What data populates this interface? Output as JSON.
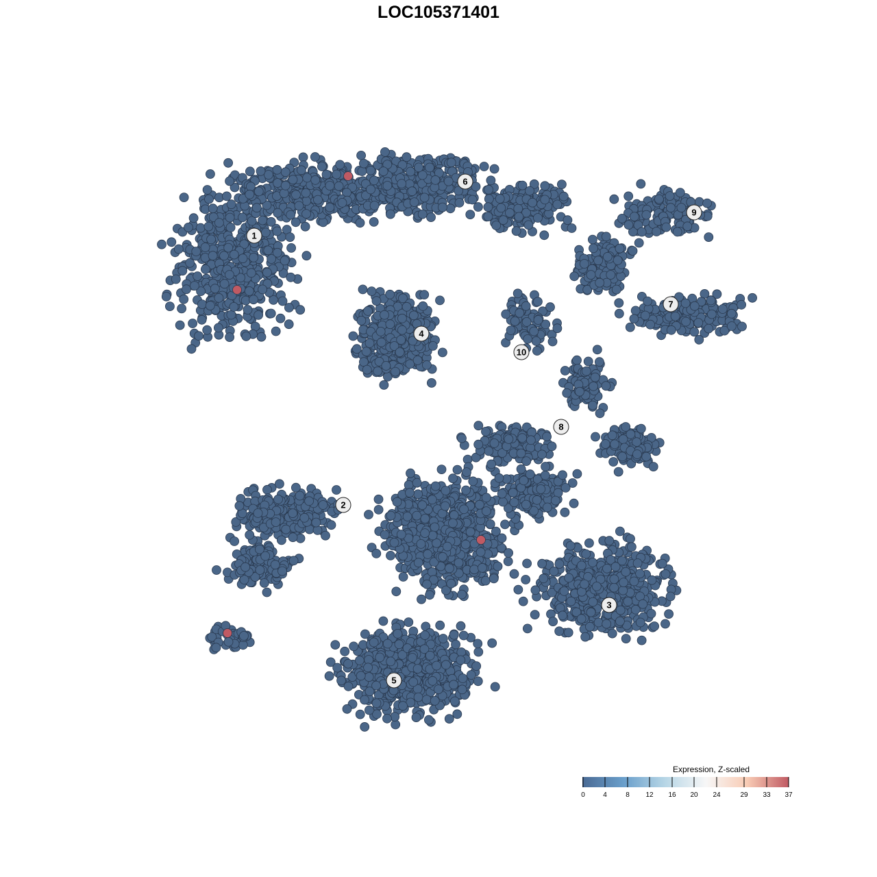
{
  "chart_data": {
    "type": "scatter",
    "title": "LOC105371401",
    "xlabel": "",
    "ylabel": "",
    "grid": false,
    "axes_visible": false,
    "clusters": [
      "1",
      "2",
      "3",
      "4",
      "5",
      "6",
      "7",
      "8",
      "9",
      "10"
    ],
    "point_color_low": "#4a6688",
    "point_color_high": "#c05a63",
    "high_expression_cells": 5,
    "legend": {
      "title": "Expression, Z-scaled",
      "placement": "bottom-right",
      "ticks": [
        "0",
        "4",
        "8",
        "12",
        "16",
        "20",
        "24",
        "29",
        "33",
        "37"
      ],
      "colors": [
        "#4a6a94",
        "#6a9fcb",
        "#b7d6e6",
        "#f7f7f7",
        "#f8cbb4",
        "#c05a63"
      ]
    }
  }
}
